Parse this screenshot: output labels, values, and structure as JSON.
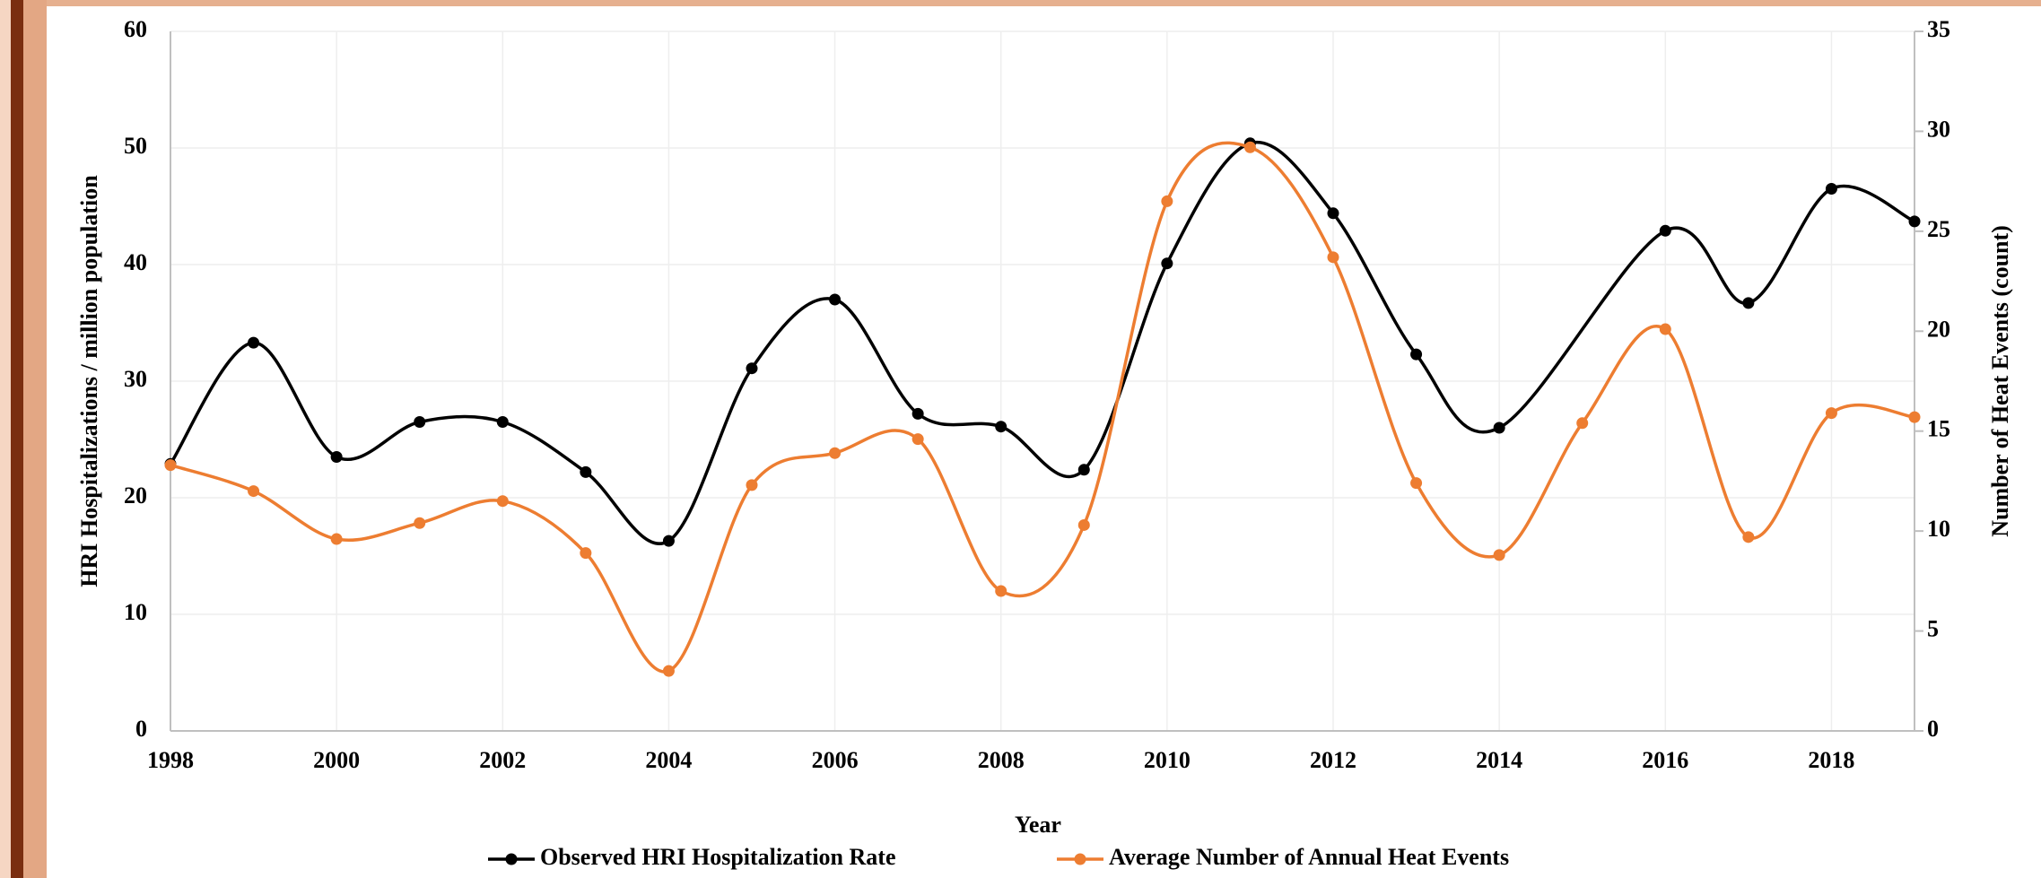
{
  "chart_data": {
    "type": "line",
    "x_label": "Year",
    "y_label": "HRI Hospitalizations / million population",
    "y2_label": "Number of Heat Events (count)",
    "xlim": [
      1998,
      2019
    ],
    "xticks": [
      1998,
      2000,
      2002,
      2004,
      2006,
      2008,
      2010,
      2012,
      2014,
      2016,
      2018
    ],
    "ylim": [
      0,
      60
    ],
    "yticks": [
      0,
      10,
      20,
      30,
      40,
      50,
      60
    ],
    "y2lim": [
      0,
      35
    ],
    "y2ticks": [
      0,
      5,
      10,
      15,
      20,
      25,
      30,
      35
    ],
    "grid": true,
    "smooth": true,
    "legend": "bottom",
    "series": [
      {
        "name": "Observed HRI Hospitalization Rate",
        "color": "#000000",
        "axis": "y",
        "x": [
          1998,
          1999,
          2000,
          2001,
          2002,
          2003,
          2004,
          2005,
          2006,
          2007,
          2008,
          2009,
          2010,
          2011,
          2012,
          2013,
          2014,
          2016,
          2017,
          2018,
          2019
        ],
        "values": [
          22.9,
          33.3,
          23.5,
          26.5,
          26.5,
          22.2,
          16.3,
          31.1,
          37.0,
          27.2,
          26.1,
          22.4,
          40.1,
          50.4,
          44.4,
          32.3,
          26.0,
          42.9,
          36.7,
          46.5,
          43.7
        ]
      },
      {
        "name": "Average Number of Annual Heat Events",
        "color": "#ed7d31",
        "axis": "y2",
        "x": [
          1998,
          1999,
          2000,
          2001,
          2002,
          2003,
          2004,
          2005,
          2006,
          2007,
          2008,
          2009,
          2010,
          2011,
          2012,
          2013,
          2014,
          2015,
          2016,
          2017,
          2018,
          2019
        ],
        "values": [
          13.3,
          12.0,
          9.6,
          10.4,
          11.5,
          8.9,
          3.0,
          12.3,
          13.9,
          14.6,
          7.0,
          10.3,
          26.5,
          29.2,
          23.7,
          12.4,
          8.8,
          15.4,
          20.1,
          9.7,
          15.9,
          15.7
        ]
      }
    ]
  }
}
